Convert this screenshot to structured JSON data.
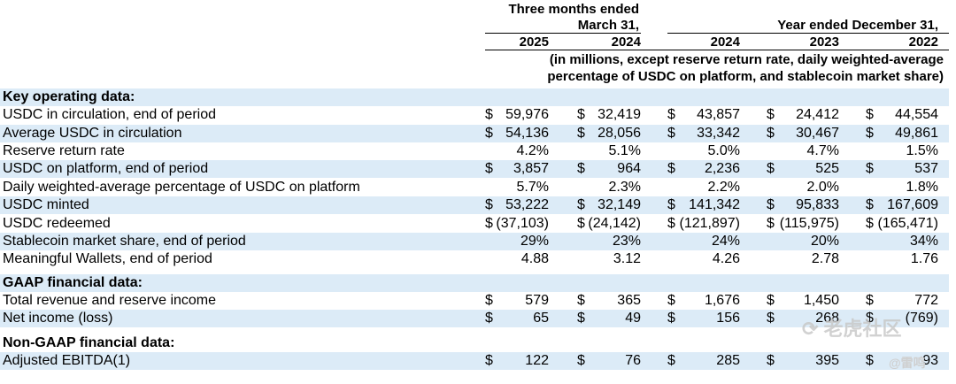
{
  "header": {
    "group1_line1": "Three months ended",
    "group1_line2": "March 31,",
    "group2_line1": "Year ended December 31,",
    "years": [
      "2025",
      "2024",
      "2024",
      "2023",
      "2022"
    ],
    "note_line1": "(in millions, except reserve return rate, daily weighted-average",
    "note_line2": "percentage of USDC on platform, and stablecoin market share)"
  },
  "rows": [
    {
      "type": "section",
      "label": "Key operating data:"
    },
    {
      "type": "data",
      "label": "USDC in circulation, end of period",
      "dollar": [
        true,
        true,
        true,
        true,
        true
      ],
      "values": [
        "59,976",
        "32,419",
        "43,857",
        "24,412",
        "44,554"
      ]
    },
    {
      "type": "data",
      "label": "Average USDC in circulation",
      "dollar": [
        true,
        true,
        true,
        true,
        true
      ],
      "values": [
        "54,136",
        "28,056",
        "33,342",
        "30,467",
        "49,861"
      ]
    },
    {
      "type": "data",
      "label": "Reserve return rate",
      "dollar": [
        false,
        false,
        false,
        false,
        false
      ],
      "values": [
        "4.2%",
        "5.1%",
        "5.0%",
        "4.7%",
        "1.5%"
      ]
    },
    {
      "type": "data",
      "label": "USDC on platform, end of period",
      "dollar": [
        true,
        true,
        true,
        true,
        true
      ],
      "values": [
        "3,857",
        "964",
        "2,236",
        "525",
        "537"
      ]
    },
    {
      "type": "data",
      "label": "Daily weighted-average percentage of USDC on platform",
      "dollar": [
        false,
        false,
        false,
        false,
        false
      ],
      "values": [
        "5.7%",
        "2.3%",
        "2.2%",
        "2.0%",
        "1.8%"
      ]
    },
    {
      "type": "data",
      "label": "USDC minted",
      "dollar": [
        true,
        true,
        true,
        true,
        true
      ],
      "values": [
        "53,222",
        "32,149",
        "141,342",
        "95,833",
        "167,609"
      ]
    },
    {
      "type": "data",
      "label": "USDC redeemed",
      "dollar": [
        true,
        true,
        true,
        true,
        true
      ],
      "values": [
        "(37,103)",
        "(24,142)",
        "(121,897)",
        "(115,975)",
        "(165,471)"
      ]
    },
    {
      "type": "data",
      "label": "Stablecoin market share, end of period",
      "dollar": [
        false,
        false,
        false,
        false,
        false
      ],
      "values": [
        "29%",
        "23%",
        "24%",
        "20%",
        "34%"
      ]
    },
    {
      "type": "data",
      "label": "Meaningful Wallets, end of period",
      "dollar": [
        false,
        false,
        false,
        false,
        false
      ],
      "values": [
        "4.88",
        "3.12",
        "4.26",
        "2.78",
        "1.76"
      ]
    },
    {
      "type": "section",
      "label": "GAAP financial data:"
    },
    {
      "type": "data",
      "label": "Total revenue and reserve income",
      "dollar": [
        true,
        true,
        true,
        true,
        true
      ],
      "values": [
        "579",
        "365",
        "1,676",
        "1,450",
        "772"
      ]
    },
    {
      "type": "data",
      "label": "Net income (loss)",
      "dollar": [
        true,
        true,
        true,
        true,
        true
      ],
      "values": [
        "65",
        "49",
        "156",
        "268",
        "(769)"
      ]
    },
    {
      "type": "section",
      "label": "Non-GAAP financial data:"
    },
    {
      "type": "data",
      "label": "Adjusted EBITDA(1)",
      "dollar": [
        true,
        true,
        true,
        true,
        true
      ],
      "values": [
        "122",
        "76",
        "285",
        "395",
        "93"
      ]
    }
  ],
  "watermark": {
    "text1": "老虎社区",
    "text2": "@雷鸣"
  }
}
